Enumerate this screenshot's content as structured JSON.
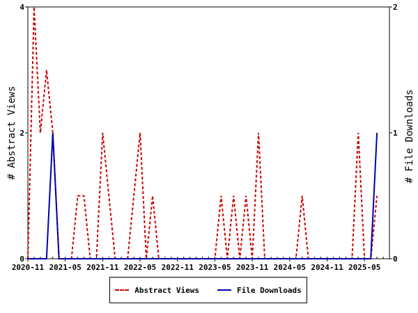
{
  "chart_data": {
    "type": "line",
    "title": "",
    "xlabel": "",
    "ylabel": "# Abstract Views",
    "y2label": "# File Downloads",
    "ylim": [
      0,
      4
    ],
    "y2lim": [
      0,
      2
    ],
    "yticks": [
      "0",
      "2",
      "4"
    ],
    "y2ticks": [
      "0",
      "1",
      "2"
    ],
    "x_range": [
      "2020-11",
      "2025-09"
    ],
    "xticks": [
      "2020-11",
      "2021-05",
      "2021-11",
      "2022-05",
      "2022-11",
      "2023-05",
      "2023-11",
      "2024-05",
      "2024-11",
      "2025-05"
    ],
    "legend_position": "bottom",
    "grid": false,
    "series": [
      {
        "name": "Abstract Views",
        "axis": "left",
        "color": "#cc0000",
        "style": "dashed",
        "points": [
          [
            "2020-11",
            0
          ],
          [
            "2020-12",
            4
          ],
          [
            "2021-01",
            2
          ],
          [
            "2021-02",
            3
          ],
          [
            "2021-03",
            2
          ],
          [
            "2021-04",
            0
          ],
          [
            "2021-05",
            0
          ],
          [
            "2021-06",
            0
          ],
          [
            "2021-07",
            1
          ],
          [
            "2021-08",
            1
          ],
          [
            "2021-09",
            0
          ],
          [
            "2021-10",
            0
          ],
          [
            "2021-11",
            2
          ],
          [
            "2021-12",
            1
          ],
          [
            "2022-01",
            0
          ],
          [
            "2022-02",
            0
          ],
          [
            "2022-03",
            0
          ],
          [
            "2022-04",
            1
          ],
          [
            "2022-05",
            2
          ],
          [
            "2022-06",
            0
          ],
          [
            "2022-07",
            1
          ],
          [
            "2022-08",
            0
          ],
          [
            "2022-09",
            0
          ],
          [
            "2022-10",
            0
          ],
          [
            "2022-11",
            0
          ],
          [
            "2022-12",
            0
          ],
          [
            "2023-01",
            0
          ],
          [
            "2023-02",
            0
          ],
          [
            "2023-03",
            0
          ],
          [
            "2023-04",
            0
          ],
          [
            "2023-05",
            0
          ],
          [
            "2023-06",
            1
          ],
          [
            "2023-07",
            0
          ],
          [
            "2023-08",
            1
          ],
          [
            "2023-09",
            0
          ],
          [
            "2023-10",
            1
          ],
          [
            "2023-11",
            0
          ],
          [
            "2023-12",
            2
          ],
          [
            "2024-01",
            0
          ],
          [
            "2024-02",
            0
          ],
          [
            "2024-03",
            0
          ],
          [
            "2024-04",
            0
          ],
          [
            "2024-05",
            0
          ],
          [
            "2024-06",
            0
          ],
          [
            "2024-07",
            1
          ],
          [
            "2024-08",
            0
          ],
          [
            "2024-09",
            0
          ],
          [
            "2024-10",
            0
          ],
          [
            "2024-11",
            0
          ],
          [
            "2024-12",
            0
          ],
          [
            "2025-01",
            0
          ],
          [
            "2025-02",
            0
          ],
          [
            "2025-03",
            0
          ],
          [
            "2025-04",
            2
          ],
          [
            "2025-05",
            0
          ],
          [
            "2025-06",
            0
          ],
          [
            "2025-07",
            1
          ]
        ]
      },
      {
        "name": "File Downloads",
        "axis": "right",
        "color": "#0000aa",
        "style": "solid",
        "points": [
          [
            "2020-11",
            0
          ],
          [
            "2020-12",
            0
          ],
          [
            "2021-01",
            0
          ],
          [
            "2021-02",
            0
          ],
          [
            "2021-03",
            1
          ],
          [
            "2021-04",
            0
          ],
          [
            "2021-05",
            0
          ],
          [
            "2021-06",
            0
          ],
          [
            "2021-07",
            0
          ],
          [
            "2021-08",
            0
          ],
          [
            "2021-09",
            0
          ],
          [
            "2021-10",
            0
          ],
          [
            "2021-11",
            0
          ],
          [
            "2021-12",
            0
          ],
          [
            "2022-01",
            0
          ],
          [
            "2022-02",
            0
          ],
          [
            "2022-03",
            0
          ],
          [
            "2022-04",
            0
          ],
          [
            "2022-05",
            0
          ],
          [
            "2022-06",
            0
          ],
          [
            "2022-07",
            0
          ],
          [
            "2022-08",
            0
          ],
          [
            "2022-09",
            0
          ],
          [
            "2022-10",
            0
          ],
          [
            "2022-11",
            0
          ],
          [
            "2022-12",
            0
          ],
          [
            "2023-01",
            0
          ],
          [
            "2023-02",
            0
          ],
          [
            "2023-03",
            0
          ],
          [
            "2023-04",
            0
          ],
          [
            "2023-05",
            0
          ],
          [
            "2023-06",
            0
          ],
          [
            "2023-07",
            0
          ],
          [
            "2023-08",
            0
          ],
          [
            "2023-09",
            0
          ],
          [
            "2023-10",
            0
          ],
          [
            "2023-11",
            0
          ],
          [
            "2023-12",
            0
          ],
          [
            "2024-01",
            0
          ],
          [
            "2024-02",
            0
          ],
          [
            "2024-03",
            0
          ],
          [
            "2024-04",
            0
          ],
          [
            "2024-05",
            0
          ],
          [
            "2024-06",
            0
          ],
          [
            "2024-07",
            0
          ],
          [
            "2024-08",
            0
          ],
          [
            "2024-09",
            0
          ],
          [
            "2024-10",
            0
          ],
          [
            "2024-11",
            0
          ],
          [
            "2024-12",
            0
          ],
          [
            "2025-01",
            0
          ],
          [
            "2025-02",
            0
          ],
          [
            "2025-03",
            0
          ],
          [
            "2025-04",
            0
          ],
          [
            "2025-05",
            0
          ],
          [
            "2025-06",
            0
          ],
          [
            "2025-07",
            1
          ]
        ]
      }
    ]
  },
  "legend": {
    "items": [
      {
        "label": "Abstract Views",
        "color": "#cc0000",
        "style": "dashed"
      },
      {
        "label": "File Downloads",
        "color": "#0000aa",
        "style": "solid"
      }
    ]
  }
}
